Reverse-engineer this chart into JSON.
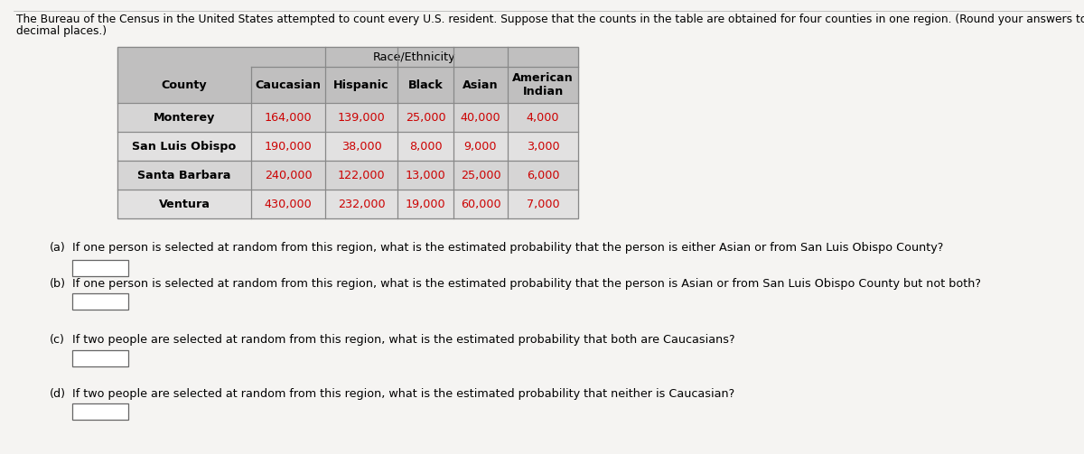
{
  "intro_text_line1": "The Bureau of the Census in the United States attempted to count every U.S. resident. Suppose that the counts in the table are obtained for four counties in one region. (Round your answers to four",
  "intro_text_line2": "decimal places.)",
  "table": {
    "header_top": "Race/Ethnicity",
    "col_headers": [
      "County",
      "Caucasian",
      "Hispanic",
      "Black",
      "Asian",
      "American\nIndian"
    ],
    "rows": [
      [
        "Monterey",
        "164,000",
        "139,000",
        "25,000",
        "40,000",
        "4,000"
      ],
      [
        "San Luis Obispo",
        "190,000",
        "38,000",
        "8,000",
        "9,000",
        "3,000"
      ],
      [
        "Santa Barbara",
        "240,000",
        "122,000",
        "13,000",
        "25,000",
        "6,000"
      ],
      [
        "Ventura",
        "430,000",
        "232,000",
        "19,000",
        "60,000",
        "7,000"
      ]
    ],
    "header_bg": "#c0bfbf",
    "col_header_bg": "#c0bfbf",
    "row_colors": [
      "#d6d5d5",
      "#e2e1e1",
      "#d6d5d5",
      "#e2e1e1"
    ],
    "data_color": "#cc0000",
    "county_color": "#000000",
    "header_text_color": "#000000",
    "border_color": "#888888"
  },
  "questions": [
    "If one person is selected at random from this region, what is the estimated probability that the person is either Asian or from San Luis Obispo County?",
    "If one person is selected at random from this region, what is the estimated probability that the person is Asian or from San Luis Obispo County but not both?",
    "If two people are selected at random from this region, what is the estimated probability that both are Caucasians?",
    "If two people are selected at random from this region, what is the estimated probability that neither is Caucasian?"
  ],
  "q_labels": [
    "(a)",
    "(b)",
    "(c)",
    "(d)"
  ],
  "page_bg": "#f5f4f2",
  "font_size_intro": 8.8,
  "font_size_table_data": 9.2,
  "font_size_table_header": 9.2,
  "font_size_question": 9.2
}
